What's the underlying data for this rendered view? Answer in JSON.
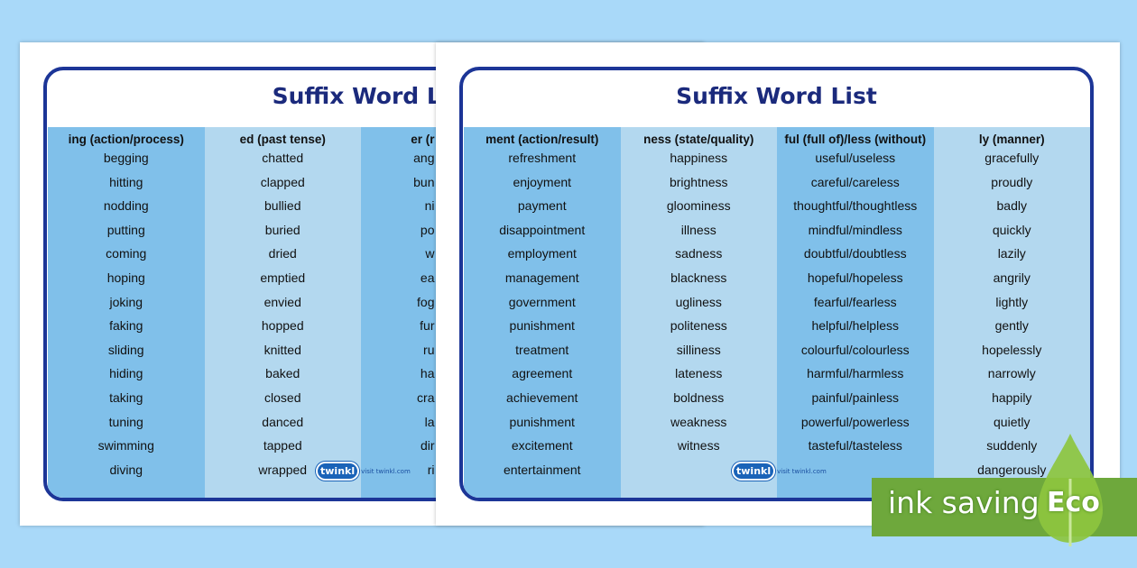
{
  "back_page": {
    "title": "Suffix Word Li",
    "columns": [
      {
        "header": "ing (action/process)",
        "words": [
          "begging",
          "hitting",
          "nodding",
          "putting",
          "coming",
          "hoping",
          "joking",
          "faking",
          "sliding",
          "hiding",
          "taking",
          "tuning",
          "swimming",
          "diving"
        ]
      },
      {
        "header": "ed (past tense)",
        "words": [
          "chatted",
          "clapped",
          "bullied",
          "buried",
          "dried",
          "emptied",
          "envied",
          "hopped",
          "knitted",
          "baked",
          "closed",
          "danced",
          "tapped",
          "wrapped"
        ]
      },
      {
        "header": "er (r",
        "words": [
          "ang",
          "bun",
          "ni",
          "po",
          "w",
          "ea",
          "fog",
          "fur",
          "ru",
          "ha",
          "cra",
          "la",
          "dir",
          "ri"
        ]
      }
    ],
    "logo": "twinkl",
    "logo_link": "visit twinkl.com"
  },
  "front_page": {
    "title": "Suffix Word List",
    "columns": [
      {
        "header": "ment (action/result)",
        "words": [
          "refreshment",
          "enjoyment",
          "payment",
          "disappointment",
          "employment",
          "management",
          "government",
          "punishment",
          "treatment",
          "agreement",
          "achievement",
          "punishment",
          "excitement",
          "entertainment"
        ]
      },
      {
        "header": "ness (state/quality)",
        "words": [
          "happiness",
          "brightness",
          "gloominess",
          "illness",
          "sadness",
          "blackness",
          "ugliness",
          "politeness",
          "silliness",
          "lateness",
          "boldness",
          "weakness",
          "witness"
        ]
      },
      {
        "header": "ful (full of)/less (without)",
        "words": [
          "useful/useless",
          "careful/careless",
          "thoughtful/thoughtless",
          "mindful/mindless",
          "doubtful/doubtless",
          "hopeful/hopeless",
          "fearful/fearless",
          "helpful/helpless",
          "colourful/colourless",
          "harmful/harmless",
          "painful/painless",
          "powerful/powerless",
          "tasteful/tasteless"
        ]
      },
      {
        "header": "ly (manner)",
        "words": [
          "gracefully",
          "proudly",
          "badly",
          "quickly",
          "lazily",
          "angrily",
          "lightly",
          "gently",
          "hopelessly",
          "narrowly",
          "happily",
          "quietly",
          "suddenly",
          "dangerously"
        ]
      }
    ],
    "logo": "twinkl",
    "logo_link": "visit twinkl.com"
  },
  "badge": {
    "text": "ink saving",
    "label": "Eco",
    "color": "#6ea83c",
    "leaf_color": "#8dc63f"
  }
}
